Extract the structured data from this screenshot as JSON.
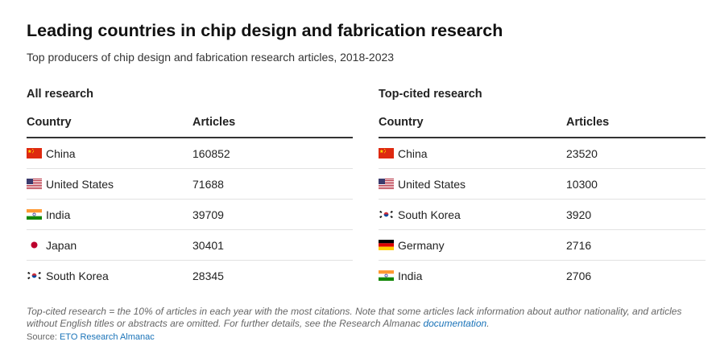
{
  "title": "Leading countries in chip design and fabrication research",
  "subtitle": "Top producers of chip design and fabrication research articles, 2018-2023",
  "all_research": {
    "heading": "All research",
    "col_country": "Country",
    "col_articles": "Articles",
    "rows": [
      {
        "flag": "china-flag-icon",
        "country": "China",
        "articles": "160852"
      },
      {
        "flag": "united-states-flag-icon",
        "country": "United States",
        "articles": "71688"
      },
      {
        "flag": "india-flag-icon",
        "country": "India",
        "articles": "39709"
      },
      {
        "flag": "japan-flag-icon",
        "country": "Japan",
        "articles": "30401"
      },
      {
        "flag": "south-korea-flag-icon",
        "country": "South Korea",
        "articles": "28345"
      }
    ]
  },
  "top_cited": {
    "heading": "Top-cited research",
    "col_country": "Country",
    "col_articles": "Articles",
    "rows": [
      {
        "flag": "china-flag-icon",
        "country": "China",
        "articles": "23520"
      },
      {
        "flag": "united-states-flag-icon",
        "country": "United States",
        "articles": "10300"
      },
      {
        "flag": "south-korea-flag-icon",
        "country": "South Korea",
        "articles": "3920"
      },
      {
        "flag": "germany-flag-icon",
        "country": "Germany",
        "articles": "2716"
      },
      {
        "flag": "india-flag-icon",
        "country": "India",
        "articles": "2706"
      }
    ]
  },
  "note": {
    "text": "Top-cited research = the 10% of articles in each year with the most citations. Note that some articles lack information about author nationality, and articles without English titles or abstracts are omitted. For further details, see the Research Almanac ",
    "link": "documentation",
    "end": "."
  },
  "source": {
    "label": "Source: ",
    "link": "ETO Research Almanac"
  },
  "colors": {
    "link": "#1a73b8",
    "rule": "#333333",
    "divider": "#e2e2e2"
  }
}
